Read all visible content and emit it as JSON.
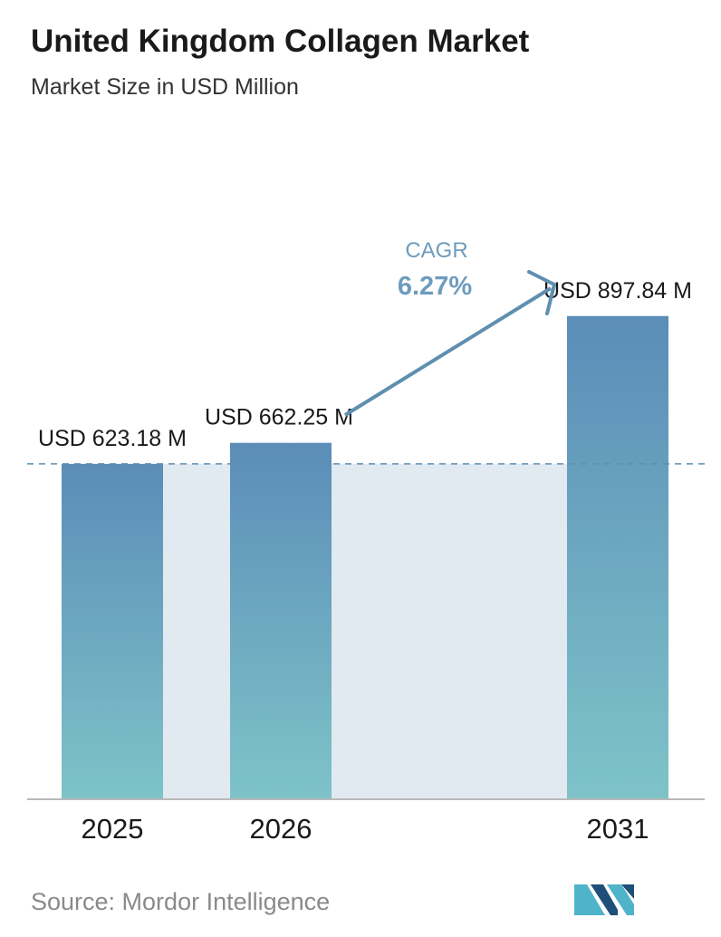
{
  "header": {
    "title": "United Kingdom Collagen Market",
    "subtitle": "Market Size in USD Million"
  },
  "footer": {
    "source": "Source:  Mordor Intelligence",
    "logo_name": "mordor-intelligence-logo"
  },
  "colors": {
    "bar_top": "#5b8db8",
    "bar_bottom": "#7ec3c8",
    "shade": "#e1e9f1",
    "reference_line": "#5f8fb0",
    "arrow": "#5f8fb0",
    "cagr_label": "#6e9cbd",
    "logo_dark": "#1f4e79",
    "logo_light": "#4fb3c9"
  },
  "chart_data": {
    "type": "bar",
    "title": "United Kingdom Collagen Market",
    "subtitle": "Market Size in USD Million",
    "categories": [
      "2025",
      "2026",
      "2031"
    ],
    "values": [
      623.18,
      662.25,
      897.84
    ],
    "value_labels": [
      "USD 623.18 M",
      "USD 662.25 M",
      "USD 897.84 M"
    ],
    "reference_line": 623.18,
    "cagr": {
      "label": "CAGR",
      "value": "6.27%"
    },
    "grid": false,
    "legend": "none"
  }
}
